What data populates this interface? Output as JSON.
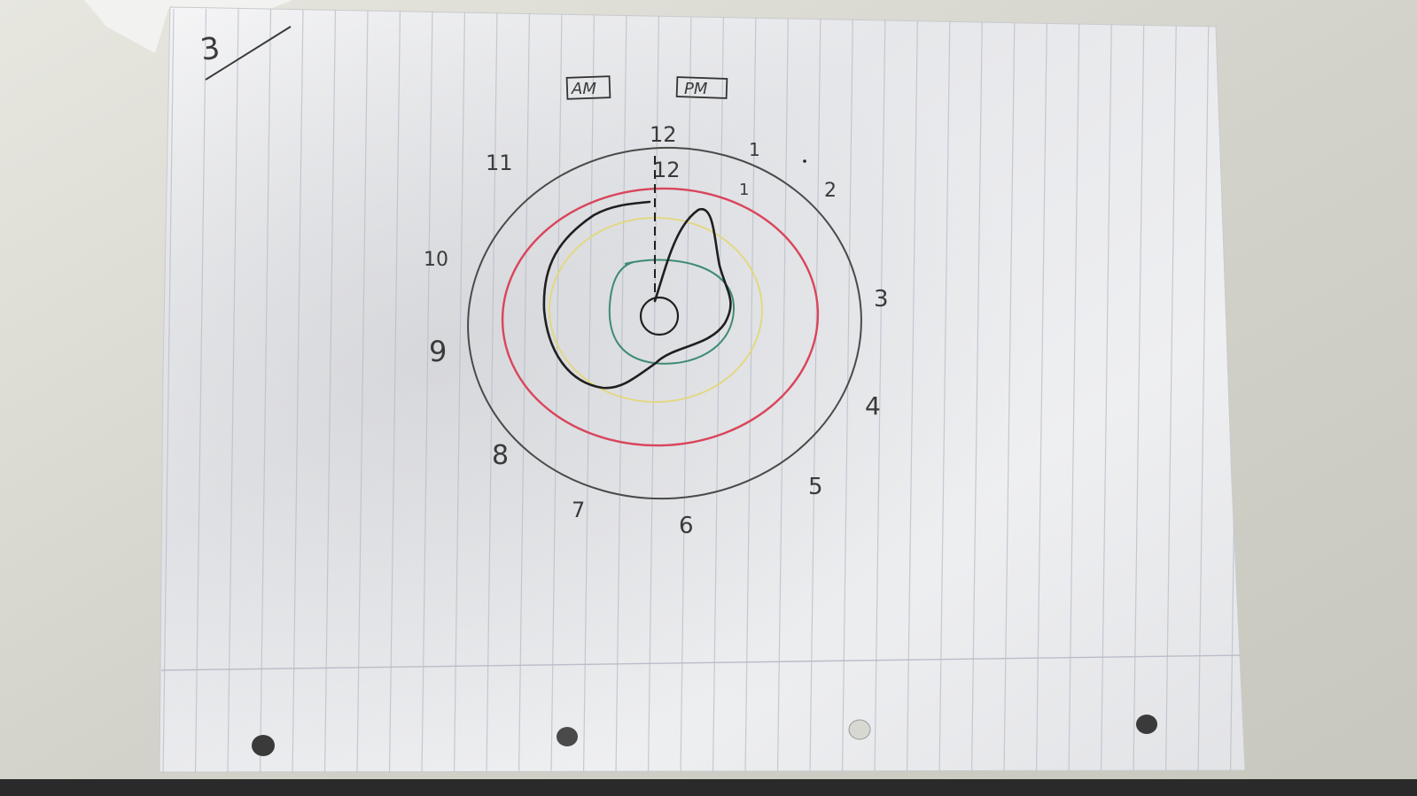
{
  "page": {
    "page_number": "3",
    "tags": [
      "AM",
      "PM"
    ]
  },
  "clock": {
    "hour_labels": [
      "12",
      "1",
      "2",
      "3",
      "4",
      "5",
      "6",
      "7",
      "8",
      "9",
      "10",
      "11"
    ],
    "inner_marks": [
      "12",
      "1"
    ]
  },
  "colors": {
    "outer_ring": "#4a4a4a",
    "red_ring": "#d9455b",
    "yellow_ring": "#e3d77a",
    "green_ring": "#3e8a74",
    "black_curve": "#1f1f1f"
  }
}
